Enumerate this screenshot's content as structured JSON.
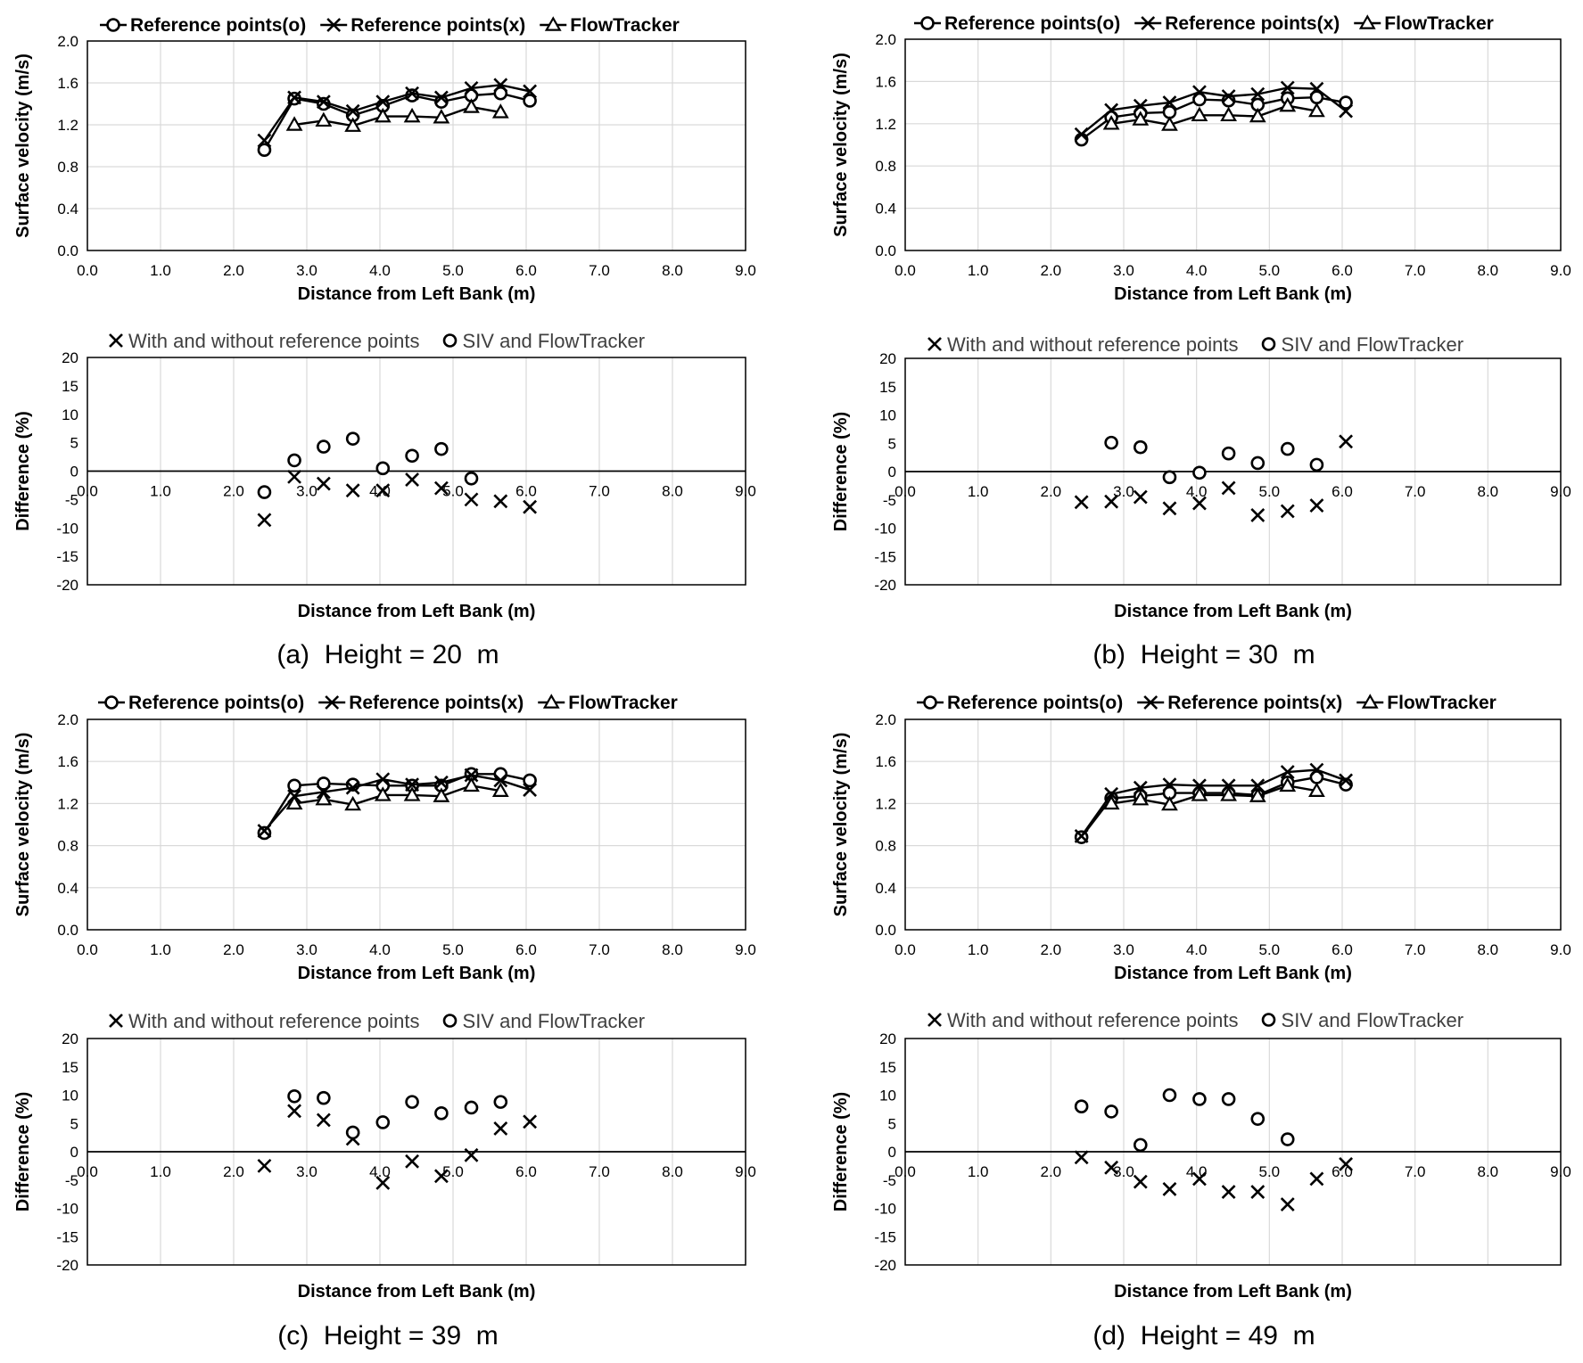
{
  "panels": [
    {
      "caption": "(a)  Height = 20  m",
      "velocity": {
        "type": "line",
        "xlabel": "Distance from Left Bank (m)",
        "ylabel": "Surface velocity (m/s)",
        "xlim": [
          0,
          9
        ],
        "ylim": [
          0,
          2
        ],
        "xticks": [
          "0.0",
          "1.0",
          "2.0",
          "3.0",
          "4.0",
          "5.0",
          "6.0",
          "7.0",
          "8.0",
          "9.0"
        ],
        "yticks": [
          "0.0",
          "0.4",
          "0.8",
          "1.2",
          "1.6",
          "2.0"
        ],
        "legend": [
          "Reference points(o)",
          "Reference points(x)",
          "FlowTracker"
        ],
        "series": [
          {
            "name": "Reference points(o)",
            "marker": "circle",
            "x": [
              2.42,
              2.83,
              3.23,
              3.63,
              4.04,
              4.44,
              4.84,
              5.25,
              5.65,
              6.05
            ],
            "y": [
              0.96,
              1.45,
              1.4,
              1.29,
              1.38,
              1.48,
              1.42,
              1.48,
              1.5,
              1.43
            ]
          },
          {
            "name": "Reference points(x)",
            "marker": "x",
            "x": [
              2.42,
              2.83,
              3.23,
              3.63,
              4.04,
              4.44,
              4.84,
              5.25,
              5.65,
              6.05
            ],
            "y": [
              1.05,
              1.46,
              1.42,
              1.33,
              1.42,
              1.5,
              1.46,
              1.55,
              1.58,
              1.52
            ]
          },
          {
            "name": "FlowTracker",
            "marker": "triangle",
            "x": [
              2.83,
              3.23,
              3.63,
              4.04,
              4.44,
              4.84,
              5.25,
              5.65
            ],
            "y": [
              1.2,
              1.24,
              1.19,
              1.28,
              1.28,
              1.27,
              1.37,
              1.32
            ]
          }
        ]
      },
      "difference": {
        "type": "scatter",
        "xlabel": "Distance from Left Bank (m)",
        "ylabel": "Difference (%)",
        "xlim": [
          0,
          9
        ],
        "ylim": [
          -20,
          20
        ],
        "xticks": [
          "0.0",
          "1.0",
          "2.0",
          "3.0",
          "4.0",
          "5.0",
          "6.0",
          "7.0",
          "8.0",
          "9.0"
        ],
        "yticks": [
          "-20",
          "-15",
          "-10",
          "-5",
          "0",
          "5",
          "10",
          "15",
          "20"
        ],
        "legend": [
          "With and without reference points",
          "SIV and FlowTracker"
        ],
        "series": [
          {
            "name": "With and without reference points",
            "marker": "x",
            "x": [
              2.42,
              2.83,
              3.23,
              3.63,
              4.04,
              4.44,
              4.84,
              5.25,
              5.65,
              6.05
            ],
            "y": [
              -8.6,
              -1.0,
              -2.2,
              -3.4,
              -3.4,
              -1.5,
              -3.0,
              -5.0,
              -5.3,
              -6.3
            ]
          },
          {
            "name": "SIV and FlowTracker",
            "marker": "circle",
            "x": [
              2.42,
              2.83,
              3.23,
              3.63,
              4.04,
              4.44,
              4.84,
              5.25
            ],
            "y": [
              -3.7,
              1.9,
              4.3,
              5.7,
              0.5,
              2.7,
              3.9,
              -1.3
            ]
          }
        ]
      }
    },
    {
      "caption": "(b)  Height = 30  m",
      "velocity": {
        "type": "line",
        "xlabel": "Distance from Left Bank (m)",
        "ylabel": "Surface velocity (m/s)",
        "xlim": [
          0,
          9
        ],
        "ylim": [
          0,
          2
        ],
        "xticks": [
          "0.0",
          "1.0",
          "2.0",
          "3.0",
          "4.0",
          "5.0",
          "6.0",
          "7.0",
          "8.0",
          "9.0"
        ],
        "yticks": [
          "0.0",
          "0.4",
          "0.8",
          "1.2",
          "1.6",
          "2.0"
        ],
        "legend": [
          "Reference points(o)",
          "Reference points(x)",
          "FlowTracker"
        ],
        "series": [
          {
            "name": "Reference points(o)",
            "marker": "circle",
            "x": [
              2.42,
              2.83,
              3.23,
              3.63,
              4.04,
              4.44,
              4.84,
              5.25,
              5.65,
              6.05
            ],
            "y": [
              1.05,
              1.26,
              1.3,
              1.31,
              1.43,
              1.42,
              1.38,
              1.44,
              1.45,
              1.4
            ]
          },
          {
            "name": "Reference points(x)",
            "marker": "x",
            "x": [
              2.42,
              2.83,
              3.23,
              3.63,
              4.04,
              4.44,
              4.84,
              5.25,
              5.65,
              6.05
            ],
            "y": [
              1.1,
              1.33,
              1.37,
              1.4,
              1.5,
              1.46,
              1.48,
              1.54,
              1.53,
              1.32
            ]
          },
          {
            "name": "FlowTracker",
            "marker": "triangle",
            "x": [
              2.83,
              3.23,
              3.63,
              4.04,
              4.44,
              4.84,
              5.25,
              5.65
            ],
            "y": [
              1.2,
              1.24,
              1.19,
              1.28,
              1.28,
              1.27,
              1.37,
              1.32
            ]
          }
        ]
      },
      "difference": {
        "type": "scatter",
        "xlabel": "Distance from Left Bank (m)",
        "ylabel": "Difference (%)",
        "xlim": [
          0,
          9
        ],
        "ylim": [
          -20,
          20
        ],
        "xticks": [
          "0.0",
          "1.0",
          "2.0",
          "3.0",
          "4.0",
          "5.0",
          "6.0",
          "7.0",
          "8.0",
          "9.0"
        ],
        "yticks": [
          "-20",
          "-15",
          "-10",
          "-5",
          "0",
          "5",
          "10",
          "15",
          "20"
        ],
        "legend": [
          "With and without reference points",
          "SIV and FlowTracker"
        ],
        "series": [
          {
            "name": "With and without reference points",
            "marker": "x",
            "x": [
              2.42,
              2.83,
              3.23,
              3.63,
              4.04,
              4.44,
              4.84,
              5.25,
              5.65,
              6.05
            ],
            "y": [
              -5.4,
              -5.3,
              -4.5,
              -6.5,
              -5.6,
              -2.9,
              -7.7,
              -7.0,
              -6.0,
              5.3
            ]
          },
          {
            "name": "SIV and FlowTracker",
            "marker": "circle",
            "x": [
              2.83,
              3.23,
              3.63,
              4.04,
              4.44,
              4.84,
              5.25,
              5.65
            ],
            "y": [
              5.1,
              4.3,
              -1.0,
              -0.2,
              3.2,
              1.5,
              4.0,
              1.2
            ]
          }
        ]
      }
    },
    {
      "caption": "(c)  Height = 39  m",
      "velocity": {
        "type": "line",
        "xlabel": "Distance from Left Bank (m)",
        "ylabel": "Surface velocity (m/s)",
        "xlim": [
          0,
          9
        ],
        "ylim": [
          0,
          2
        ],
        "xticks": [
          "0.0",
          "1.0",
          "2.0",
          "3.0",
          "4.0",
          "5.0",
          "6.0",
          "7.0",
          "8.0",
          "9.0"
        ],
        "yticks": [
          "0.0",
          "0.4",
          "0.8",
          "1.2",
          "1.6",
          "2.0"
        ],
        "legend": [
          "Reference points(o)",
          "Reference points(x)",
          "FlowTracker"
        ],
        "series": [
          {
            "name": "Reference points(o)",
            "marker": "circle",
            "x": [
              2.42,
              2.83,
              3.23,
              3.63,
              4.04,
              4.44,
              4.84,
              5.25,
              5.65,
              6.05
            ],
            "y": [
              0.92,
              1.37,
              1.39,
              1.38,
              1.37,
              1.37,
              1.37,
              1.48,
              1.48,
              1.42
            ]
          },
          {
            "name": "Reference points(x)",
            "marker": "x",
            "x": [
              2.42,
              2.83,
              3.23,
              3.63,
              4.04,
              4.44,
              4.84,
              5.25,
              5.65,
              6.05
            ],
            "y": [
              0.94,
              1.27,
              1.31,
              1.35,
              1.43,
              1.38,
              1.4,
              1.47,
              1.42,
              1.33
            ]
          },
          {
            "name": "FlowTracker",
            "marker": "triangle",
            "x": [
              2.83,
              3.23,
              3.63,
              4.04,
              4.44,
              4.84,
              5.25,
              5.65
            ],
            "y": [
              1.2,
              1.24,
              1.19,
              1.28,
              1.28,
              1.27,
              1.37,
              1.32
            ]
          }
        ]
      },
      "difference": {
        "type": "scatter",
        "xlabel": "Distance from Left Bank (m)",
        "ylabel": "Difference (%)",
        "xlim": [
          0,
          9
        ],
        "ylim": [
          -20,
          20
        ],
        "xticks": [
          "0.0",
          "1.0",
          "2.0",
          "3.0",
          "4.0",
          "5.0",
          "6.0",
          "7.0",
          "8.0",
          "9.0"
        ],
        "yticks": [
          "-20",
          "-15",
          "-10",
          "-5",
          "0",
          "5",
          "10",
          "15",
          "20"
        ],
        "legend": [
          "With and without reference points",
          "SIV and FlowTracker"
        ],
        "series": [
          {
            "name": "With and without reference points",
            "marker": "x",
            "x": [
              2.42,
              2.83,
              3.23,
              3.63,
              4.04,
              4.44,
              4.84,
              5.25,
              5.65,
              6.05
            ],
            "y": [
              -2.5,
              7.2,
              5.6,
              2.3,
              -5.5,
              -1.7,
              -4.3,
              -0.6,
              4.1,
              5.3
            ]
          },
          {
            "name": "SIV and FlowTracker",
            "marker": "circle",
            "x": [
              2.83,
              3.23,
              3.63,
              4.04,
              4.44,
              4.84,
              5.25,
              5.65
            ],
            "y": [
              9.8,
              9.5,
              3.4,
              5.2,
              8.8,
              6.8,
              7.8,
              8.8
            ]
          }
        ]
      }
    },
    {
      "caption": "(d)  Height = 49  m",
      "velocity": {
        "type": "line",
        "xlabel": "Distance from Left Bank (m)",
        "ylabel": "Surface velocity (m/s)",
        "xlim": [
          0,
          9
        ],
        "ylim": [
          0,
          2
        ],
        "xticks": [
          "0.0",
          "1.0",
          "2.0",
          "3.0",
          "4.0",
          "5.0",
          "6.0",
          "7.0",
          "8.0",
          "9.0"
        ],
        "yticks": [
          "0.0",
          "0.4",
          "0.8",
          "1.2",
          "1.6",
          "2.0"
        ],
        "legend": [
          "Reference points(o)",
          "Reference points(x)",
          "FlowTracker"
        ],
        "series": [
          {
            "name": "Reference points(o)",
            "marker": "circle",
            "x": [
              2.42,
              2.83,
              3.23,
              3.63,
              4.04,
              4.44,
              4.84,
              5.25,
              5.65,
              6.05
            ],
            "y": [
              0.88,
              1.25,
              1.27,
              1.3,
              1.3,
              1.3,
              1.28,
              1.4,
              1.45,
              1.38
            ]
          },
          {
            "name": "Reference points(x)",
            "marker": "x",
            "x": [
              2.42,
              2.83,
              3.23,
              3.63,
              4.04,
              4.44,
              4.84,
              5.25,
              5.65,
              6.05
            ],
            "y": [
              0.89,
              1.29,
              1.35,
              1.38,
              1.37,
              1.37,
              1.37,
              1.5,
              1.52,
              1.42
            ]
          },
          {
            "name": "FlowTracker",
            "marker": "triangle",
            "x": [
              2.83,
              3.23,
              3.63,
              4.04,
              4.44,
              4.84,
              5.25,
              5.65
            ],
            "y": [
              1.2,
              1.24,
              1.19,
              1.28,
              1.28,
              1.27,
              1.37,
              1.32
            ]
          }
        ]
      },
      "difference": {
        "type": "scatter",
        "xlabel": "Distance from Left Bank (m)",
        "ylabel": "Difference (%)",
        "xlim": [
          0,
          9
        ],
        "ylim": [
          -20,
          20
        ],
        "xticks": [
          "0.0",
          "1.0",
          "2.0",
          "3.0",
          "4.0",
          "5.0",
          "6.0",
          "7.0",
          "8.0",
          "9.0"
        ],
        "yticks": [
          "-20",
          "-15",
          "-10",
          "-5",
          "0",
          "5",
          "10",
          "15",
          "20"
        ],
        "legend": [
          "With and without reference points",
          "SIV and FlowTracker"
        ],
        "series": [
          {
            "name": "With and without reference points",
            "marker": "x",
            "x": [
              2.42,
              2.83,
              3.23,
              3.63,
              4.04,
              4.44,
              4.84,
              5.25,
              5.65,
              6.05
            ],
            "y": [
              -1.0,
              -2.8,
              -5.3,
              -6.6,
              -4.8,
              -7.1,
              -7.1,
              -9.3,
              -4.8,
              -2.2
            ]
          },
          {
            "name": "SIV and FlowTracker",
            "marker": "circle",
            "x": [
              2.42,
              2.83,
              3.23,
              3.63,
              4.04,
              4.44,
              4.84,
              5.25
            ],
            "y": [
              8.0,
              7.1,
              1.2,
              10.0,
              9.3,
              9.3,
              5.8,
              2.2
            ]
          }
        ]
      }
    }
  ]
}
